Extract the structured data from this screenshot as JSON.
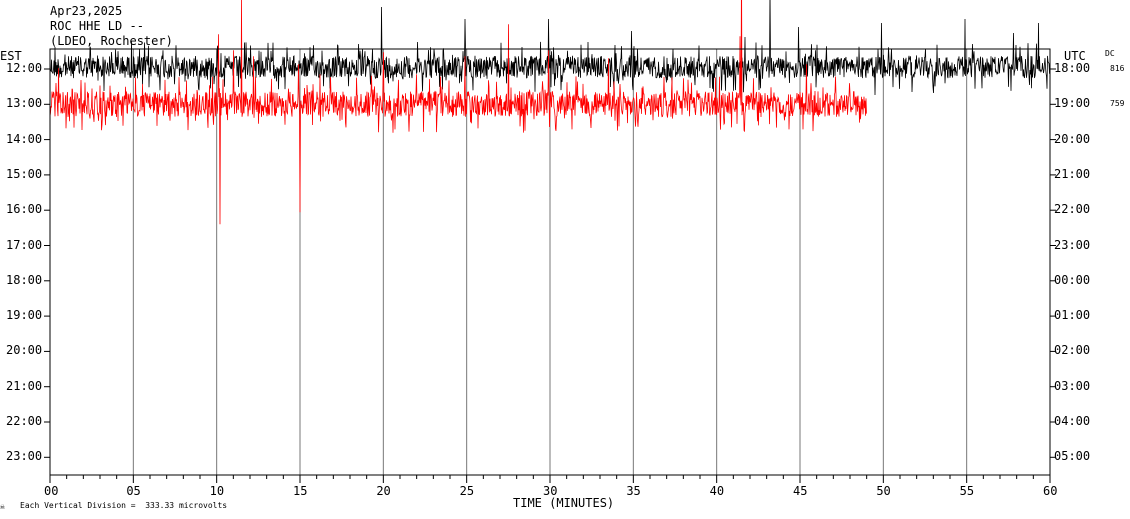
{
  "header": {
    "date": "Apr23,2025",
    "station": "ROC HHE LD --",
    "location": "(LDEO, Rochester)"
  },
  "left_tz": "EST",
  "right_tz": "UTC",
  "dc_label": "DC",
  "footer": {
    "scale_note": "Each Vertical Division =  333.33 microvolts",
    "corner_mark": "☠"
  },
  "chart_data": {
    "type": "line",
    "title": "",
    "xlabel": "TIME (MINUTES)",
    "ylabel": "",
    "xlim": [
      0,
      60
    ],
    "x_ticks": [
      "00",
      "05",
      "10",
      "15",
      "20",
      "25",
      "30",
      "35",
      "40",
      "45",
      "50",
      "55",
      "60"
    ],
    "y_left_ticks": [
      "12:00",
      "13:00",
      "14:00",
      "15:00",
      "16:00",
      "17:00",
      "18:00",
      "19:00",
      "20:00",
      "21:00",
      "22:00",
      "23:00"
    ],
    "y_right_ticks": [
      "18:00",
      "19:00",
      "20:00",
      "21:00",
      "22:00",
      "23:00",
      "00:00",
      "01:00",
      "02:00",
      "03:00",
      "04:00",
      "05:00"
    ],
    "dc_values": [
      "816",
      "759"
    ],
    "grid": "vertical lines every 5 minutes",
    "series": [
      {
        "hour": "12:00",
        "color": "#000000",
        "end_minute": 60,
        "noise": 14,
        "spikes": [
          [
            0.3,
            -20
          ],
          [
            4.9,
            -26
          ],
          [
            19.9,
            -60
          ],
          [
            24.9,
            -48
          ],
          [
            29.9,
            -48
          ],
          [
            30.5,
            -12
          ],
          [
            34.9,
            -36
          ],
          [
            41.7,
            -30
          ],
          [
            43.2,
            -80
          ],
          [
            44.9,
            -40
          ],
          [
            49.5,
            28
          ],
          [
            49.9,
            -44
          ],
          [
            53.0,
            26
          ],
          [
            54.9,
            -48
          ],
          [
            57.8,
            -34
          ],
          [
            59.3,
            -44
          ]
        ]
      },
      {
        "hour": "13:00",
        "color": "#ff0000",
        "end_minute": 49,
        "noise": 16,
        "spikes": [
          [
            0.5,
            -36
          ],
          [
            10.1,
            -70
          ],
          [
            10.2,
            120
          ],
          [
            11.0,
            -54
          ],
          [
            11.5,
            -108
          ],
          [
            12.2,
            -48
          ],
          [
            14.9,
            -40
          ],
          [
            15.0,
            108
          ],
          [
            16.2,
            -30
          ],
          [
            20.0,
            -52
          ],
          [
            22.0,
            -30
          ],
          [
            24.9,
            -48
          ],
          [
            27.5,
            -80
          ],
          [
            29.9,
            -54
          ],
          [
            33.5,
            -46
          ],
          [
            38.0,
            -26
          ],
          [
            41.4,
            -68
          ],
          [
            41.5,
            -148
          ],
          [
            42.2,
            -26
          ],
          [
            45.4,
            -40
          ]
        ]
      }
    ]
  }
}
